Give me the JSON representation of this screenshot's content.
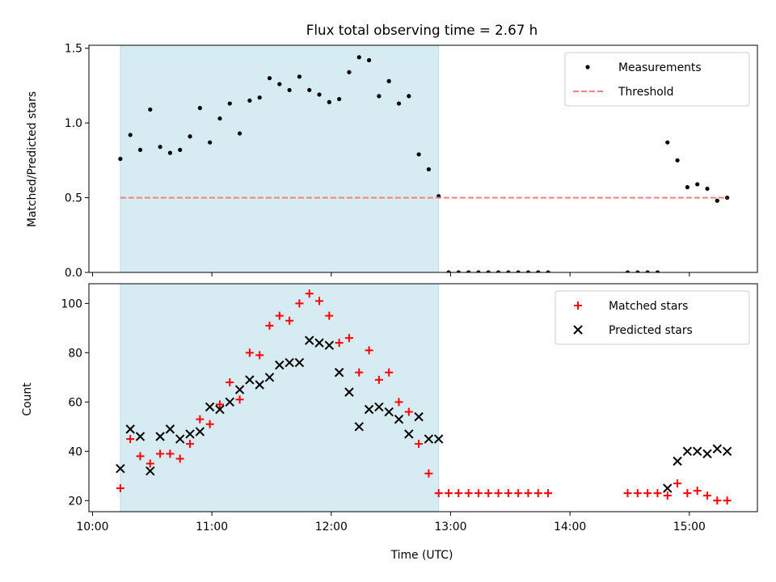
{
  "title": "Flux total observing time = 2.67 h",
  "colors": {
    "shade": "#add8e6",
    "threshold": "#ff7f7f",
    "matched": "#ff0000",
    "predicted": "#000000",
    "measurement": "#000000"
  },
  "chart_data": [
    {
      "type": "scatter",
      "ylabel": "Matched/Predicted stars",
      "ylim": [
        0,
        1.52
      ],
      "yticks": [
        0.0,
        0.5,
        1.0,
        1.5
      ],
      "ytick_labels": [
        "0.0",
        "0.5",
        "1.0",
        "1.5"
      ],
      "xlim_hours": [
        9.97,
        15.57
      ],
      "shaded_interval": [
        "10:14",
        "12:54"
      ],
      "threshold": 0.5,
      "legend": "top-right",
      "series": [
        {
          "name": "Measurements",
          "marker": "dot",
          "x": [
            "10:14",
            "10:19",
            "10:24",
            "10:29",
            "10:34",
            "10:39",
            "10:44",
            "10:49",
            "10:54",
            "10:59",
            "11:04",
            "11:09",
            "11:14",
            "11:19",
            "11:24",
            "11:29",
            "11:34",
            "11:39",
            "11:44",
            "11:49",
            "11:54",
            "11:59",
            "12:04",
            "12:09",
            "12:14",
            "12:19",
            "12:24",
            "12:29",
            "12:34",
            "12:39",
            "12:44",
            "12:49",
            "12:54",
            "12:59",
            "13:04",
            "13:09",
            "13:14",
            "13:19",
            "13:24",
            "13:29",
            "13:34",
            "13:39",
            "13:44",
            "13:49",
            "14:29",
            "14:34",
            "14:39",
            "14:44",
            "14:49",
            "14:54",
            "14:59",
            "15:04",
            "15:09",
            "15:14",
            "15:19"
          ],
          "y": [
            0.76,
            0.92,
            0.82,
            1.09,
            0.84,
            0.8,
            0.82,
            0.91,
            1.1,
            0.87,
            1.03,
            1.13,
            0.93,
            1.15,
            1.17,
            1.3,
            1.26,
            1.22,
            1.31,
            1.22,
            1.19,
            1.14,
            1.16,
            1.34,
            1.44,
            1.42,
            1.18,
            1.28,
            1.13,
            1.18,
            0.79,
            0.69,
            0.51,
            0,
            0,
            0,
            0,
            0,
            0,
            0,
            0,
            0,
            0,
            0,
            0,
            0,
            0,
            0,
            0.87,
            0.75,
            0.57,
            0.59,
            0.56,
            0.48,
            0.5
          ]
        },
        {
          "name": "Threshold",
          "style": "dashed",
          "x": [
            "10:14",
            "15:19"
          ],
          "y": [
            0.5,
            0.5
          ]
        }
      ]
    },
    {
      "type": "scatter",
      "xlabel": "Time (UTC)",
      "ylabel": "Count",
      "ylim": [
        15.5,
        108
      ],
      "yticks": [
        20,
        40,
        60,
        80,
        100
      ],
      "ytick_labels": [
        "20",
        "40",
        "60",
        "80",
        "100"
      ],
      "xlim_hours": [
        9.97,
        15.57
      ],
      "xticks": [
        "10:00",
        "11:00",
        "12:00",
        "13:00",
        "14:00",
        "15:00"
      ],
      "xtick_labels": [
        "10:00",
        "11:00",
        "12:00",
        "13:00",
        "14:00",
        "15:00"
      ],
      "shaded_interval": [
        "10:14",
        "12:54"
      ],
      "legend": "top-right",
      "series": [
        {
          "name": "Matched stars",
          "marker": "plus",
          "x": [
            "10:14",
            "10:19",
            "10:24",
            "10:29",
            "10:34",
            "10:39",
            "10:44",
            "10:49",
            "10:54",
            "10:59",
            "11:04",
            "11:09",
            "11:14",
            "11:19",
            "11:24",
            "11:29",
            "11:34",
            "11:39",
            "11:44",
            "11:49",
            "11:54",
            "11:59",
            "12:04",
            "12:09",
            "12:14",
            "12:19",
            "12:24",
            "12:29",
            "12:34",
            "12:39",
            "12:44",
            "12:49",
            "12:54",
            "12:59",
            "13:04",
            "13:09",
            "13:14",
            "13:19",
            "13:24",
            "13:29",
            "13:34",
            "13:39",
            "13:44",
            "13:49",
            "14:29",
            "14:34",
            "14:39",
            "14:44",
            "14:49",
            "14:54",
            "14:59",
            "15:04",
            "15:09",
            "15:14",
            "15:19"
          ],
          "y": [
            25,
            45,
            38,
            35,
            39,
            39,
            37,
            43,
            53,
            51,
            59,
            68,
            61,
            80,
            79,
            91,
            95,
            93,
            100,
            104,
            101,
            95,
            84,
            86,
            72,
            81,
            69,
            72,
            60,
            56,
            43,
            31,
            23,
            23,
            23,
            23,
            23,
            23,
            23,
            23,
            23,
            23,
            23,
            23,
            23,
            23,
            23,
            23,
            22,
            27,
            23,
            24,
            22,
            20,
            20
          ]
        },
        {
          "name": "Predicted stars",
          "marker": "x",
          "x": [
            "10:14",
            "10:19",
            "10:24",
            "10:29",
            "10:34",
            "10:39",
            "10:44",
            "10:49",
            "10:54",
            "10:59",
            "11:04",
            "11:09",
            "11:14",
            "11:19",
            "11:24",
            "11:29",
            "11:34",
            "11:39",
            "11:44",
            "11:49",
            "11:54",
            "11:59",
            "12:04",
            "12:09",
            "12:14",
            "12:19",
            "12:24",
            "12:29",
            "12:34",
            "12:39",
            "12:44",
            "12:49",
            "12:54",
            "14:49",
            "14:54",
            "14:59",
            "15:04",
            "15:09",
            "15:14",
            "15:19"
          ],
          "y": [
            33,
            49,
            46,
            32,
            46,
            49,
            45,
            47,
            48,
            58,
            57,
            60,
            65,
            69,
            67,
            70,
            75,
            76,
            76,
            85,
            84,
            83,
            72,
            64,
            50,
            57,
            58,
            56,
            53,
            47,
            54,
            45,
            45,
            25,
            36,
            40,
            40,
            39,
            41,
            40
          ]
        }
      ]
    }
  ]
}
